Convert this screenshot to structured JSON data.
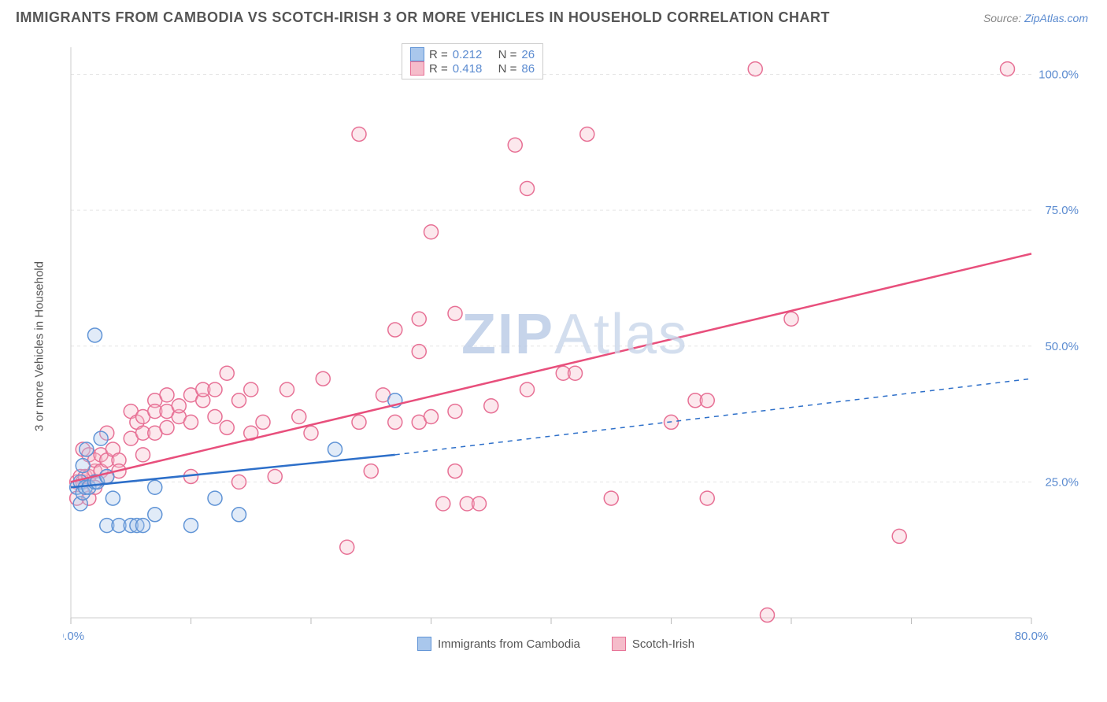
{
  "header": {
    "title": "IMMIGRANTS FROM CAMBODIA VS SCOTCH-IRISH 3 OR MORE VEHICLES IN HOUSEHOLD CORRELATION CHART",
    "source_prefix": "Source: ",
    "source_link": "ZipAtlas.com"
  },
  "watermark": {
    "zip": "ZIP",
    "atlas": "Atlas"
  },
  "chart": {
    "type": "scatter",
    "y_axis_label": "3 or more Vehicles in Household",
    "background_color": "#ffffff",
    "grid_color": "#e5e5e5",
    "axis_color": "#cccccc",
    "tick_color": "#bbbbbb",
    "label_color": "#5b8bd0",
    "text_color": "#555555",
    "xlim": [
      0,
      80
    ],
    "ylim": [
      0,
      105
    ],
    "xticks": [
      0,
      10,
      20,
      30,
      40,
      50,
      60,
      70,
      80
    ],
    "xtick_labels": {
      "0": "0.0%",
      "80": "80.0%"
    },
    "yticks": [
      25,
      50,
      75,
      100
    ],
    "ytick_labels": {
      "25": "25.0%",
      "50": "50.0%",
      "75": "75.0%",
      "100": "100.0%"
    },
    "marker_radius": 9,
    "marker_stroke_width": 1.5,
    "marker_fill_opacity": 0.35,
    "line_width": 2.5,
    "series": [
      {
        "name": "Immigrants from Cambodia",
        "color_fill": "#a9c7ec",
        "color_stroke": "#6094d6",
        "line_color": "#2d6fc9",
        "R": "0.212",
        "N": "26",
        "regression": {
          "x1": 0,
          "y1": 24,
          "x2_solid": 27,
          "y2_solid": 30,
          "x2_dashed": 80,
          "y2_dashed": 44
        },
        "points": [
          [
            0.5,
            24
          ],
          [
            0.8,
            25
          ],
          [
            0.8,
            21
          ],
          [
            1,
            23
          ],
          [
            1,
            28
          ],
          [
            1.2,
            24
          ],
          [
            1.3,
            31
          ],
          [
            1.5,
            24
          ],
          [
            2,
            52
          ],
          [
            2,
            25
          ],
          [
            2.2,
            25
          ],
          [
            2.5,
            33
          ],
          [
            3,
            26
          ],
          [
            3,
            17
          ],
          [
            3.5,
            22
          ],
          [
            4,
            17
          ],
          [
            5,
            17
          ],
          [
            5.5,
            17
          ],
          [
            6,
            17
          ],
          [
            7,
            24
          ],
          [
            7,
            19
          ],
          [
            10,
            17
          ],
          [
            12,
            22
          ],
          [
            14,
            19
          ],
          [
            22,
            31
          ],
          [
            27,
            40
          ]
        ]
      },
      {
        "name": "Scotch-Irish",
        "color_fill": "#f5bcca",
        "color_stroke": "#e77095",
        "line_color": "#e84f7c",
        "R": "0.418",
        "N": "86",
        "regression": {
          "x1": 0,
          "y1": 25,
          "x2_solid": 80,
          "y2_solid": 67,
          "x2_dashed": 80,
          "y2_dashed": 67
        },
        "points": [
          [
            0.5,
            22
          ],
          [
            0.5,
            25
          ],
          [
            0.8,
            26
          ],
          [
            1,
            25
          ],
          [
            1,
            31
          ],
          [
            1.2,
            26
          ],
          [
            1.5,
            26
          ],
          [
            1.5,
            30
          ],
          [
            1.5,
            22
          ],
          [
            2,
            27
          ],
          [
            2,
            24
          ],
          [
            2,
            29
          ],
          [
            2.5,
            27
          ],
          [
            2.5,
            30
          ],
          [
            3,
            26
          ],
          [
            3,
            34
          ],
          [
            3,
            29
          ],
          [
            3.5,
            31
          ],
          [
            4,
            29
          ],
          [
            4,
            27
          ],
          [
            5,
            33
          ],
          [
            5,
            38
          ],
          [
            5.5,
            36
          ],
          [
            6,
            30
          ],
          [
            6,
            37
          ],
          [
            6,
            34
          ],
          [
            7,
            40
          ],
          [
            7,
            38
          ],
          [
            7,
            34
          ],
          [
            8,
            38
          ],
          [
            8,
            41
          ],
          [
            8,
            35
          ],
          [
            9,
            37
          ],
          [
            9,
            39
          ],
          [
            10,
            26
          ],
          [
            10,
            36
          ],
          [
            10,
            41
          ],
          [
            11,
            40
          ],
          [
            11,
            42
          ],
          [
            12,
            37
          ],
          [
            12,
            42
          ],
          [
            13,
            35
          ],
          [
            13,
            45
          ],
          [
            14,
            25
          ],
          [
            14,
            40
          ],
          [
            15,
            42
          ],
          [
            15,
            34
          ],
          [
            16,
            36
          ],
          [
            17,
            26
          ],
          [
            18,
            42
          ],
          [
            19,
            37
          ],
          [
            20,
            34
          ],
          [
            21,
            44
          ],
          [
            23,
            13
          ],
          [
            24,
            36
          ],
          [
            24,
            89
          ],
          [
            25,
            27
          ],
          [
            26,
            41
          ],
          [
            27,
            53
          ],
          [
            27,
            36
          ],
          [
            29,
            36
          ],
          [
            29,
            55
          ],
          [
            29,
            49
          ],
          [
            30,
            71
          ],
          [
            30,
            37
          ],
          [
            31,
            21
          ],
          [
            32,
            38
          ],
          [
            32,
            56
          ],
          [
            32,
            27
          ],
          [
            33,
            21
          ],
          [
            34,
            21
          ],
          [
            35,
            39
          ],
          [
            36,
            101
          ],
          [
            37,
            87
          ],
          [
            38,
            42
          ],
          [
            38,
            79
          ],
          [
            41,
            45
          ],
          [
            42,
            45
          ],
          [
            43,
            89
          ],
          [
            45,
            22
          ],
          [
            50,
            36
          ],
          [
            52,
            40
          ],
          [
            53,
            40
          ],
          [
            53,
            22
          ],
          [
            57,
            101
          ],
          [
            58,
            0.5
          ],
          [
            60,
            55
          ],
          [
            69,
            15
          ],
          [
            78,
            101
          ]
        ]
      }
    ],
    "legend_top": {
      "R_label": "R =",
      "N_label": "N ="
    },
    "legend_bottom_labels": [
      "Immigrants from Cambodia",
      "Scotch-Irish"
    ]
  }
}
